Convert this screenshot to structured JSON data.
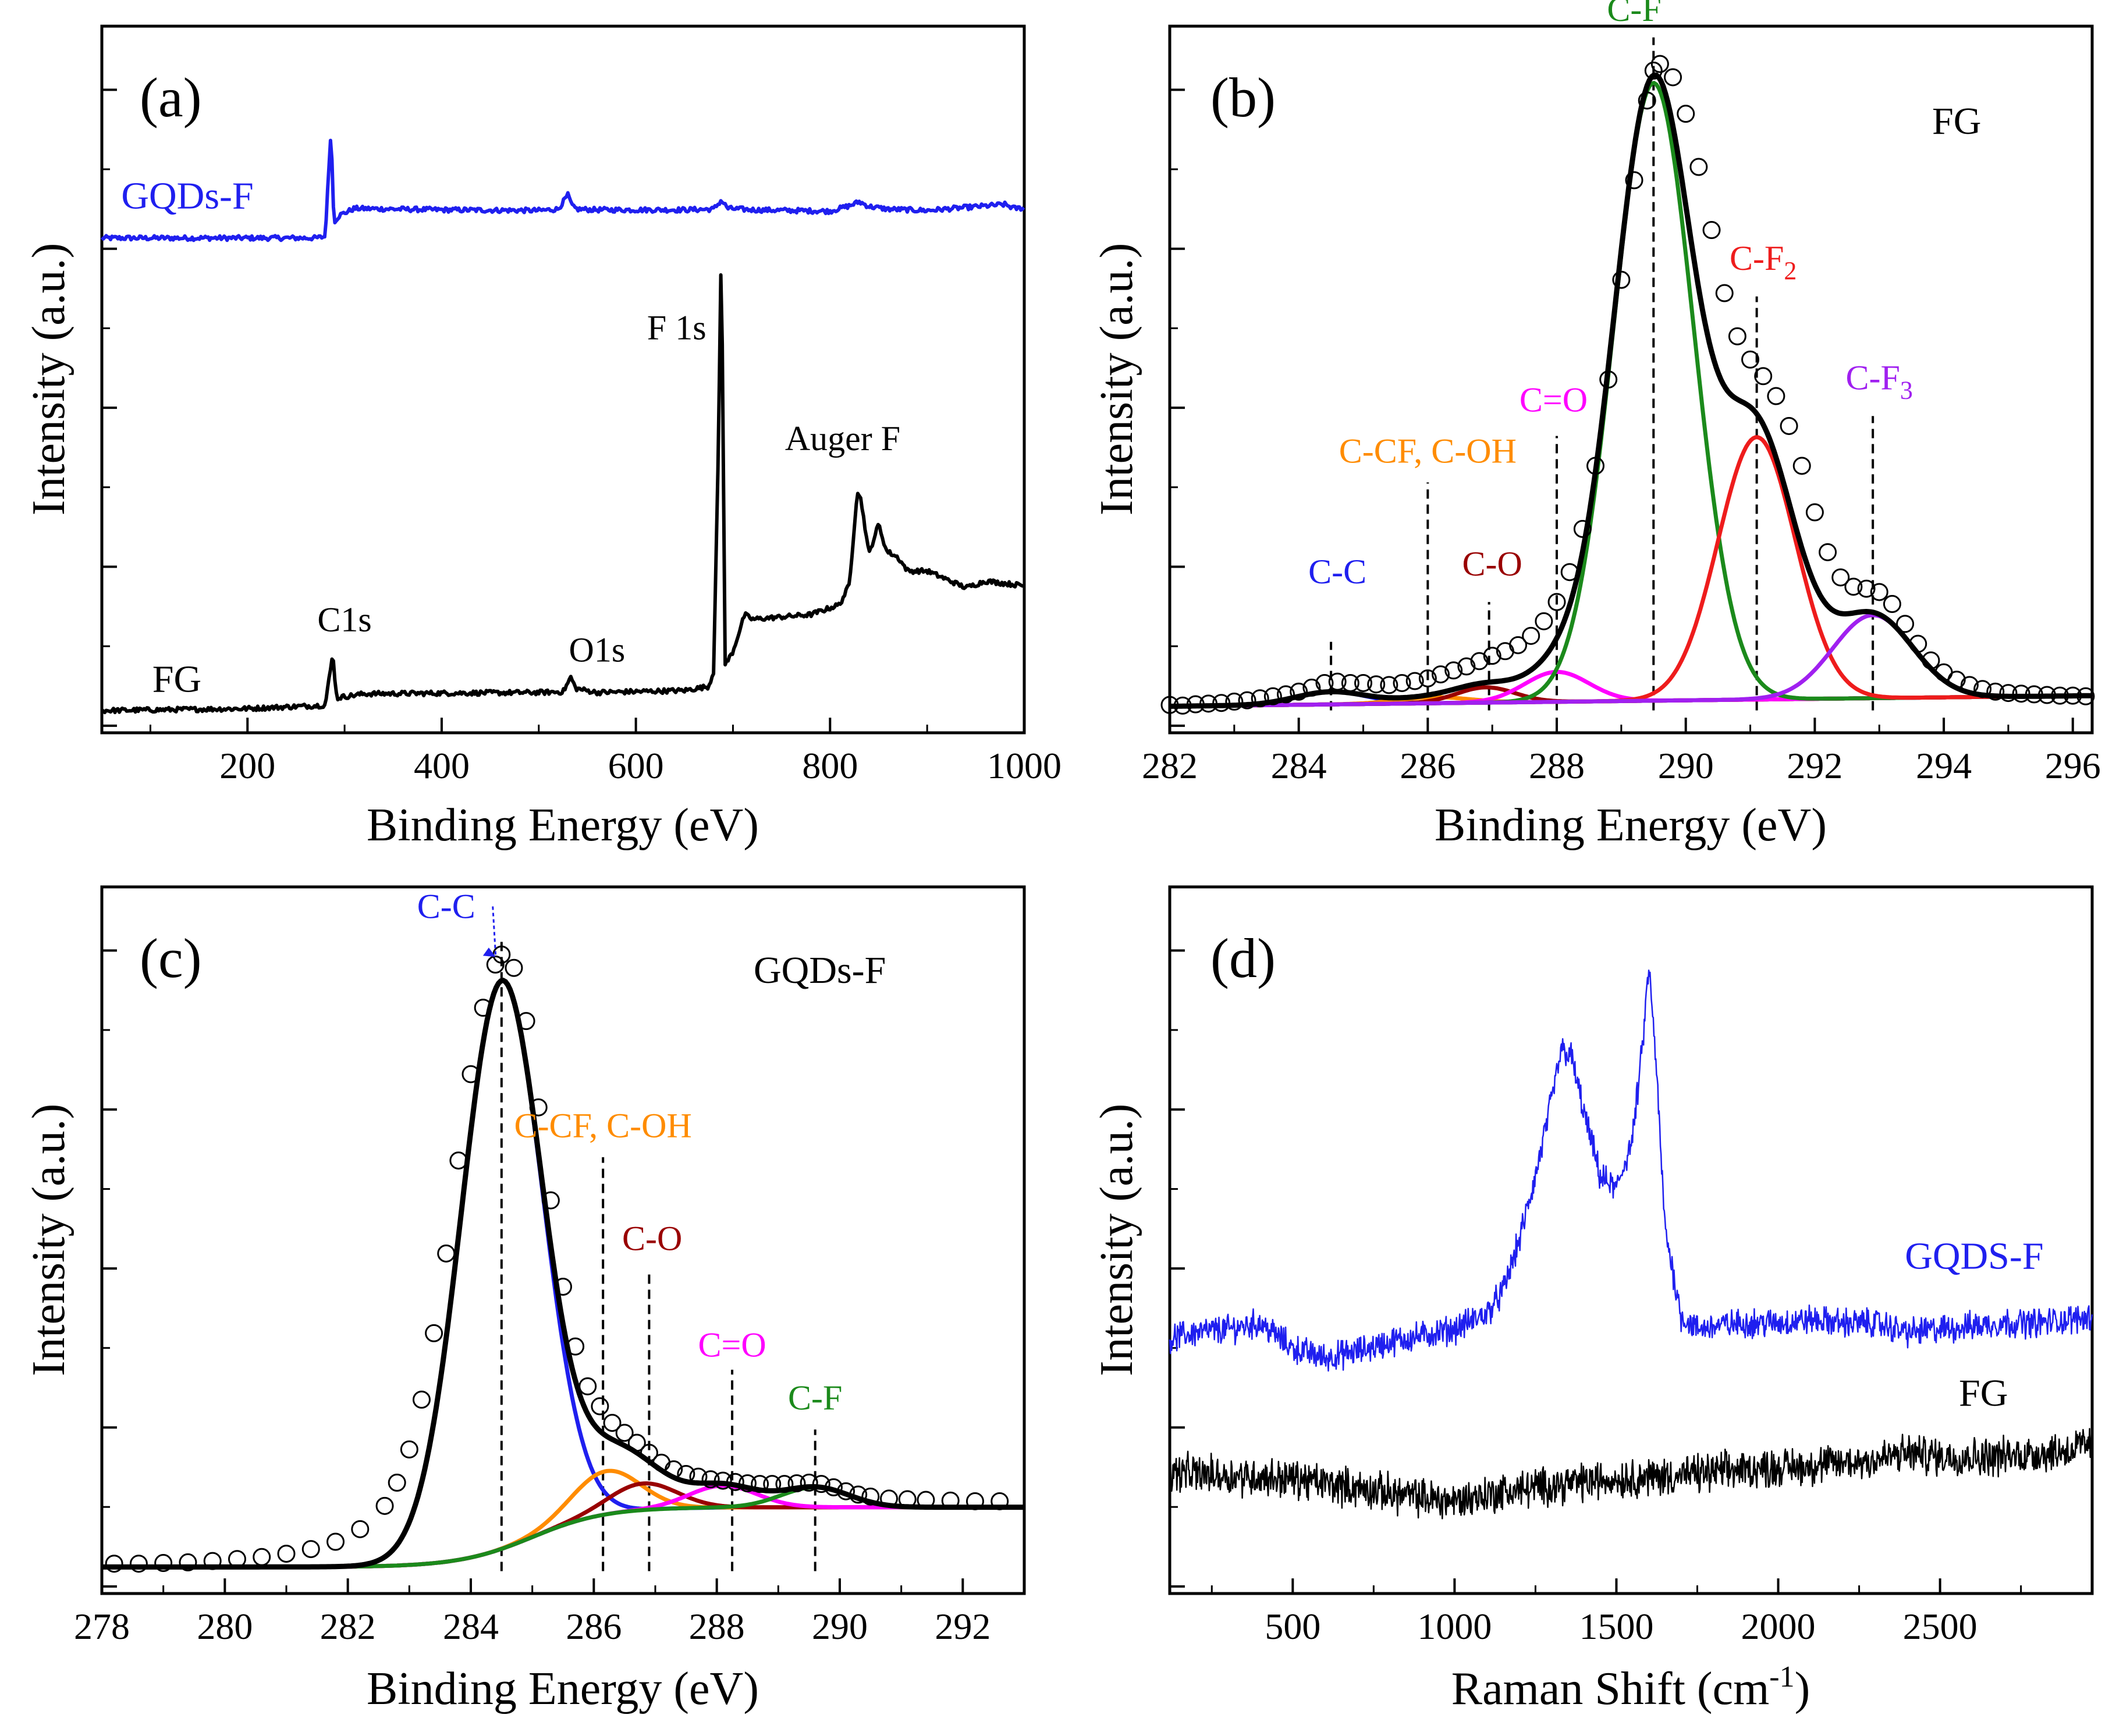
{
  "colors": {
    "black": "#000000",
    "blue": "#1f1fef",
    "green": "#1b8a1b",
    "red": "#ee1c1c",
    "purple": "#a020f0",
    "magenta": "#ff00ff",
    "orange": "#ff8c00",
    "darkred": "#990000",
    "olive": "#808000"
  },
  "chart_data": [
    {
      "id": "a",
      "type": "line",
      "panel_label": "(a)",
      "xlabel": "Binding Energy (eV)",
      "ylabel": "Intensity (a.u.)",
      "xlim": [
        50,
        1000
      ],
      "ylim": [
        0,
        100
      ],
      "xticks": [
        200,
        400,
        600,
        800,
        1000
      ],
      "series": [
        {
          "name": "GQDs-F",
          "label": "GQDs-F",
          "color": "#1f1fef",
          "x": [
            50,
            270,
            280,
            284,
            286,
            289,
            295,
            310,
            400,
            500,
            520,
            530,
            535,
            540,
            560,
            650,
            680,
            688,
            695,
            720,
            800,
            820,
            830,
            840,
            860,
            900,
            980,
            990,
            1000
          ],
          "y": [
            71.6,
            71.6,
            71.8,
            82.5,
            87.8,
            74,
            75,
            76,
            75.8,
            75.7,
            75.9,
            78,
            76.2,
            75.9,
            75.8,
            75.8,
            75.9,
            77.2,
            76,
            75.8,
            75.6,
            76.4,
            77,
            76.3,
            75.9,
            75.7,
            76.6,
            76,
            76.1
          ]
        },
        {
          "name": "FG",
          "label": "FG",
          "color": "#000000",
          "x": [
            50,
            200,
            280,
            288,
            290,
            292,
            296,
            320,
            400,
            500,
            525,
            530,
            533,
            538,
            560,
            650,
            675,
            680,
            685,
            688,
            692,
            700,
            712,
            720,
            780,
            810,
            820,
            828,
            832,
            840,
            850,
            858,
            870,
            880,
            900,
            940,
            960,
            1000
          ],
          "y": [
            1.2,
            1.5,
            2,
            9.7,
            6,
            3,
            3.2,
            3.7,
            3.8,
            3.9,
            4,
            5.3,
            6.2,
            4.5,
            3.9,
            4.2,
            4.8,
            7,
            40,
            71.5,
            8,
            10,
            15.5,
            14.8,
            15.5,
            17,
            20,
            34,
            32.5,
            24.5,
            29,
            25,
            24,
            22,
            22,
            19.5,
            20.5,
            19.8
          ]
        }
      ],
      "annotations": [
        {
          "text": "C1s",
          "x": 300,
          "y": 13,
          "color": "#000000"
        },
        {
          "text": "O1s",
          "x": 560,
          "y": 8.5,
          "color": "#000000"
        },
        {
          "text": "F 1s",
          "x": 642,
          "y": 56.5,
          "color": "#000000"
        },
        {
          "text": "Auger F",
          "x": 813,
          "y": 40,
          "color": "#000000"
        }
      ]
    },
    {
      "id": "b",
      "type": "line",
      "panel_label": "(b)",
      "title": "FG",
      "xlabel": "Binding Energy (eV)",
      "ylabel": "Intensity (a.u.)",
      "xlim": [
        282,
        296.3
      ],
      "ylim": [
        0,
        100
      ],
      "xticks": [
        282,
        284,
        286,
        288,
        290,
        292,
        294,
        296
      ],
      "background": {
        "x0": 282,
        "y0": 0.8,
        "x1": 296.3,
        "y1": 2.4
      },
      "components": [
        {
          "name": "C-C",
          "label": "C-C",
          "center": 284.5,
          "amp": 1.9,
          "sigma": 0.55,
          "color": "#1f1fef",
          "line_x": 284.5,
          "line_top": 10.5,
          "label_x": 284.6,
          "label_y": 19.3
        },
        {
          "name": "C-CF, C-OH",
          "label": "C-CF, C-OH",
          "center": 286.1,
          "amp": 0.9,
          "sigma": 0.55,
          "color": "#ff8c00",
          "line_x": 286.0,
          "line_top": 34.5,
          "label_x": 286.0,
          "label_y": 37.5
        },
        {
          "name": "C-O",
          "label": "C-O",
          "center": 286.9,
          "amp": 2.3,
          "sigma": 0.45,
          "color": "#990000",
          "line_x": 286.95,
          "line_top": 16.5,
          "label_x": 287.0,
          "label_y": 20.5
        },
        {
          "name": "C=O",
          "label": "C=O",
          "center": 288.0,
          "amp": 4.5,
          "sigma": 0.5,
          "color": "#ff00ff",
          "line_x": 288.0,
          "line_top": 41.5,
          "label_x": 287.95,
          "label_y": 45.2
        },
        {
          "name": "C-F",
          "label": "C-F",
          "center": 289.5,
          "amp": 93,
          "sigma": 0.62,
          "color": "#1b8a1b",
          "line_x": 289.5,
          "line_top": 101.5,
          "label_x": 289.2,
          "label_y": 104
        },
        {
          "name": "C-F2",
          "label": "C-F",
          "sub": "2",
          "center": 291.1,
          "amp": 39.5,
          "sigma": 0.6,
          "color": "#ee1c1c",
          "line_x": 291.1,
          "line_top": 62.5,
          "label_x": 291.2,
          "label_y": 66.5
        },
        {
          "name": "C-F3",
          "label": "C-F",
          "sub": "3",
          "center": 292.9,
          "amp": 12.5,
          "sigma": 0.62,
          "color": "#a020f0",
          "line_x": 292.9,
          "line_top": 44.5,
          "label_x": 293.0,
          "label_y": 48.5
        }
      ],
      "background_color": "#808000",
      "envelope_color": "#000000",
      "data_marker": "open-circle",
      "data_points": [
        [
          282,
          1.0
        ],
        [
          282.2,
          0.9
        ],
        [
          282.4,
          1.1
        ],
        [
          282.6,
          1.2
        ],
        [
          282.8,
          1.3
        ],
        [
          283.0,
          1.5
        ],
        [
          283.2,
          1.7
        ],
        [
          283.4,
          2.0
        ],
        [
          283.6,
          2.3
        ],
        [
          283.8,
          2.6
        ],
        [
          284.0,
          3.0
        ],
        [
          284.2,
          3.6
        ],
        [
          284.4,
          4.3
        ],
        [
          284.6,
          4.5
        ],
        [
          284.8,
          4.3
        ],
        [
          285.0,
          4.3
        ],
        [
          285.2,
          4.1
        ],
        [
          285.4,
          4.0
        ],
        [
          285.6,
          4.3
        ],
        [
          285.8,
          4.6
        ],
        [
          286.0,
          5.0
        ],
        [
          286.2,
          5.6
        ],
        [
          286.4,
          6.2
        ],
        [
          286.6,
          6.8
        ],
        [
          286.8,
          7.6
        ],
        [
          287.0,
          8.4
        ],
        [
          287.2,
          9.1
        ],
        [
          287.4,
          10.0
        ],
        [
          287.6,
          11.4
        ],
        [
          287.8,
          13.6
        ],
        [
          288.0,
          16.5
        ],
        [
          288.2,
          21.0
        ],
        [
          288.4,
          27.5
        ],
        [
          288.6,
          37.0
        ],
        [
          288.8,
          50.0
        ],
        [
          289.0,
          65.0
        ],
        [
          289.2,
          80.0
        ],
        [
          289.4,
          92.0
        ],
        [
          289.5,
          96.5
        ],
        [
          289.6,
          97.5
        ],
        [
          289.8,
          95.5
        ],
        [
          290.0,
          90.0
        ],
        [
          290.2,
          82.0
        ],
        [
          290.4,
          72.5
        ],
        [
          290.6,
          63.0
        ],
        [
          290.8,
          56.5
        ],
        [
          291.0,
          53.0
        ],
        [
          291.2,
          50.5
        ],
        [
          291.4,
          47.5
        ],
        [
          291.6,
          43.0
        ],
        [
          291.8,
          37.0
        ],
        [
          292.0,
          30.0
        ],
        [
          292.2,
          24.0
        ],
        [
          292.4,
          20.2
        ],
        [
          292.6,
          18.8
        ],
        [
          292.8,
          18.5
        ],
        [
          293.0,
          18.0
        ],
        [
          293.2,
          16.2
        ],
        [
          293.4,
          13.2
        ],
        [
          293.6,
          10.2
        ],
        [
          293.8,
          7.7
        ],
        [
          294.0,
          5.9
        ],
        [
          294.2,
          4.8
        ],
        [
          294.4,
          4.0
        ],
        [
          294.6,
          3.4
        ],
        [
          294.8,
          3.0
        ],
        [
          295.0,
          2.8
        ],
        [
          295.2,
          2.7
        ],
        [
          295.4,
          2.6
        ],
        [
          295.6,
          2.5
        ],
        [
          295.8,
          2.4
        ],
        [
          296.0,
          2.4
        ],
        [
          296.2,
          2.3
        ]
      ]
    },
    {
      "id": "c",
      "type": "line",
      "panel_label": "(c)",
      "title": "GQDs-F",
      "xlabel": "Binding Energy (eV)",
      "ylabel": "Intensity (a.u.)",
      "xlim": [
        278,
        293
      ],
      "ylim": [
        0,
        100
      ],
      "xticks": [
        278,
        280,
        282,
        284,
        286,
        288,
        290,
        292
      ],
      "background": {
        "type": "sigmoid",
        "y0": 0.8,
        "y1": 9.8,
        "center": 285.0,
        "width": 0.6
      },
      "components": [
        {
          "name": "C-C",
          "label": "C-C",
          "center": 284.5,
          "amp": 85.5,
          "sigma": 0.66,
          "color": "#1f1fef",
          "line_x": 284.5,
          "line_top": 95.5,
          "label_x": 283.6,
          "label_y": 98.5
        },
        {
          "name": "C-CF, C-OH",
          "label": "C-CF, C-OH",
          "center": 286.2,
          "amp": 6.5,
          "sigma": 0.55,
          "color": "#ff8c00",
          "line_x": 286.15,
          "line_top": 62.5,
          "label_x": 286.15,
          "label_y": 65.5
        },
        {
          "name": "C-O",
          "label": "C-O",
          "center": 286.8,
          "amp": 4.0,
          "sigma": 0.55,
          "color": "#990000",
          "line_x": 286.9,
          "line_top": 45.5,
          "label_x": 286.95,
          "label_y": 48.5
        },
        {
          "name": "C=O",
          "label": "C=O",
          "center": 288.1,
          "amp": 3.3,
          "sigma": 0.55,
          "color": "#ff00ff",
          "line_x": 288.25,
          "line_top": 30.5,
          "label_x": 288.25,
          "label_y": 32.5
        },
        {
          "name": "C-F",
          "label": "C-F",
          "center": 289.6,
          "amp": 3.0,
          "sigma": 0.55,
          "color": "#1b8a1b",
          "line_x": 289.6,
          "line_top": 21.5,
          "label_x": 289.6,
          "label_y": 24.5
        }
      ],
      "background_color": "#1b8a1b",
      "envelope_color": "#000000",
      "data_marker": "open-circle",
      "data_points": [
        [
          278.2,
          1.3
        ],
        [
          278.6,
          1.3
        ],
        [
          279.0,
          1.4
        ],
        [
          279.4,
          1.5
        ],
        [
          279.8,
          1.7
        ],
        [
          280.2,
          2.0
        ],
        [
          280.6,
          2.3
        ],
        [
          281.0,
          2.8
        ],
        [
          281.4,
          3.5
        ],
        [
          281.8,
          4.6
        ],
        [
          282.2,
          6.5
        ],
        [
          282.6,
          10.0
        ],
        [
          282.8,
          13.5
        ],
        [
          283.0,
          18.5
        ],
        [
          283.2,
          26.0
        ],
        [
          283.4,
          36.0
        ],
        [
          283.6,
          48.0
        ],
        [
          283.8,
          62.0
        ],
        [
          284.0,
          75.0
        ],
        [
          284.2,
          85.0
        ],
        [
          284.4,
          91.5
        ],
        [
          284.5,
          93.0
        ],
        [
          284.7,
          91.0
        ],
        [
          284.9,
          83.0
        ],
        [
          285.1,
          70.0
        ],
        [
          285.3,
          56.0
        ],
        [
          285.5,
          43.0
        ],
        [
          285.7,
          34.0
        ],
        [
          285.9,
          28.0
        ],
        [
          286.1,
          25.0
        ],
        [
          286.3,
          22.5
        ],
        [
          286.5,
          21.0
        ],
        [
          286.7,
          19.5
        ],
        [
          286.9,
          18.0
        ],
        [
          287.1,
          16.5
        ],
        [
          287.3,
          15.5
        ],
        [
          287.5,
          14.8
        ],
        [
          287.7,
          14.4
        ],
        [
          287.9,
          14.0
        ],
        [
          288.1,
          13.8
        ],
        [
          288.3,
          13.6
        ],
        [
          288.5,
          13.4
        ],
        [
          288.7,
          13.3
        ],
        [
          288.9,
          13.3
        ],
        [
          289.1,
          13.3
        ],
        [
          289.3,
          13.4
        ],
        [
          289.5,
          13.5
        ],
        [
          289.7,
          13.3
        ],
        [
          289.9,
          12.8
        ],
        [
          290.1,
          12.2
        ],
        [
          290.3,
          11.7
        ],
        [
          290.5,
          11.4
        ],
        [
          290.8,
          11.1
        ],
        [
          291.1,
          11.0
        ],
        [
          291.4,
          10.9
        ],
        [
          291.8,
          10.8
        ],
        [
          292.2,
          10.7
        ],
        [
          292.6,
          10.7
        ]
      ]
    },
    {
      "id": "d",
      "type": "line",
      "panel_label": "(d)",
      "xlabel": "Raman Shift (cm",
      "xlabel_sup": "-1",
      "xlabel_tail": ")",
      "ylabel": "Intensity (a.u.)",
      "xlim": [
        120,
        2970
      ],
      "ylim": [
        0,
        100
      ],
      "xticks": [
        500,
        1000,
        1500,
        2000,
        2500
      ],
      "series": [
        {
          "name": "GQDS-F",
          "label": "GQDS-F",
          "color": "#1f1fef",
          "noise": 1.8,
          "x": [
            120,
            200,
            300,
            400,
            500,
            600,
            700,
            800,
            900,
            1000,
            1100,
            1150,
            1200,
            1250,
            1300,
            1330,
            1360,
            1400,
            1450,
            1500,
            1550,
            1580,
            1600,
            1620,
            1650,
            1700,
            1750,
            1800,
            1900,
            2000,
            2100,
            2200,
            2300,
            2400,
            2500,
            2600,
            2700,
            2800,
            2900,
            2970
          ],
          "y": [
            34.5,
            35.5,
            36,
            37,
            33,
            31.5,
            32.5,
            34,
            35,
            36,
            38.5,
            42,
            50,
            60,
            72,
            80,
            79,
            70,
            60,
            58,
            66,
            80,
            93,
            80,
            52,
            38,
            36,
            36.5,
            37,
            37,
            37.5,
            37,
            37,
            35.5,
            36,
            36.5,
            37,
            37,
            37.5,
            38
          ]
        },
        {
          "name": "FG",
          "label": "FG",
          "color": "#000000",
          "noise": 2.4,
          "x": [
            120,
            300,
            500,
            700,
            900,
            1000,
            1100,
            1300,
            1500,
            1700,
            1900,
            2100,
            2300,
            2400,
            2500,
            2700,
            2900,
            2970
          ],
          "y": [
            13.5,
            13,
            12.5,
            11,
            9.5,
            9,
            10,
            11.5,
            12.5,
            13,
            14,
            14.5,
            15.5,
            16.5,
            16,
            16,
            17,
            18
          ]
        }
      ]
    }
  ]
}
